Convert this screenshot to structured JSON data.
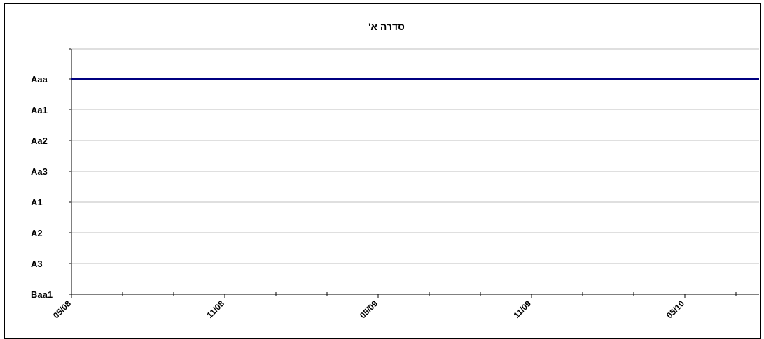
{
  "chart_data": {
    "type": "line",
    "title": "סדרה א'",
    "xlabel": "",
    "ylabel": "",
    "y_categories": [
      "Aaa",
      "Aa1",
      "Aa2",
      "Aa3",
      "A1",
      "A2",
      "A3",
      "Baa1"
    ],
    "x_tick_labels": [
      "05/08",
      "11/08",
      "05/09",
      "11/09",
      "05/10"
    ],
    "x_range": [
      "05/08",
      "10/10"
    ],
    "series": [
      {
        "x": [
          "05/08",
          "10/10"
        ],
        "values": [
          "Aaa",
          "Aaa"
        ]
      }
    ],
    "grid": true,
    "legend": "none",
    "colors": {
      "series": "#000080",
      "grid": "#bfbfbf",
      "axis": "#000000"
    }
  }
}
